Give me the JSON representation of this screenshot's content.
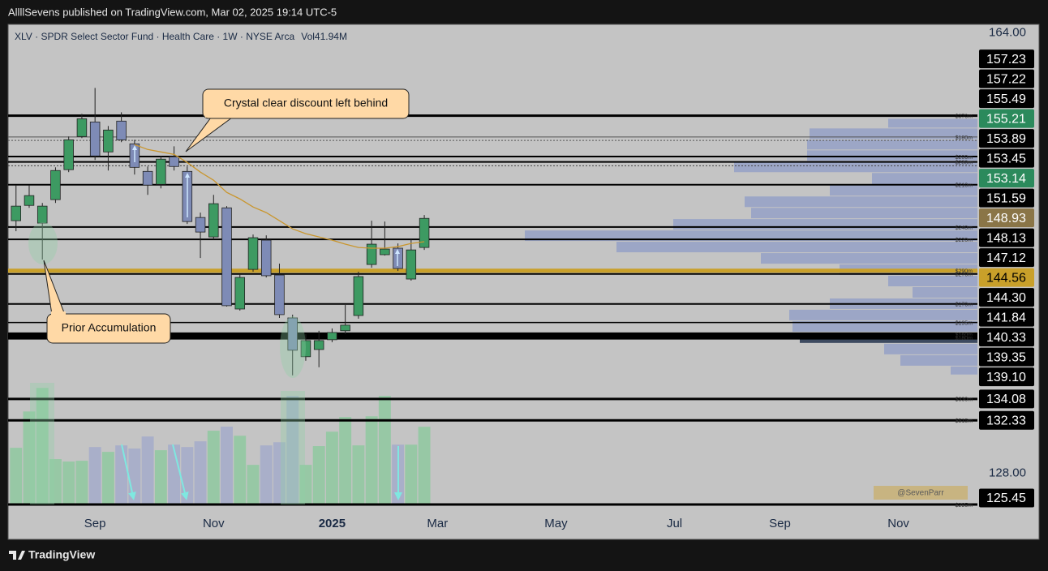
{
  "header": "AllllSevens published on TradingView.com, Mar 02, 2025 19:14 UTC-5",
  "footer": "TradingView",
  "chart_data": {
    "type": "candlestick",
    "legend": "XLV · SPDR Select Sector Fund · Health Care · 1W · NYSE Arca",
    "volume_label": "Vol41.94M",
    "annotations": [
      "Crystal clear discount left behind",
      "Prior Accumulation"
    ],
    "watermark": "@SevenParr",
    "xlim": [
      -0.6,
      73
    ],
    "xticks": [
      {
        "value": 6,
        "label": "Sep"
      },
      {
        "value": 15,
        "label": "Nov"
      },
      {
        "value": 24,
        "label": "2025"
      },
      {
        "value": 32,
        "label": "Mar"
      },
      {
        "value": 41,
        "label": "May"
      },
      {
        "value": 50,
        "label": "Jul"
      },
      {
        "value": 58,
        "label": "Sep"
      },
      {
        "value": 67,
        "label": "Nov"
      }
    ],
    "ylim": [
      122.6,
      164.7
    ],
    "yticks": [
      {
        "value": 164,
        "label": "164.00"
      },
      {
        "value": 128,
        "label": "128.00"
      }
    ],
    "up_color": "#3d9a62",
    "down_color": "#7e8bb6",
    "open": [
      148.65,
      149.9,
      148.45,
      150.37,
      152.82,
      155.53,
      156.72,
      154.27,
      156.79,
      154.93,
      152.68,
      151.62,
      153.87,
      152.68,
      148.91,
      147.32,
      149.7,
      141.43,
      144.67,
      147.06,
      144.21,
      140.7,
      137.53,
      138.12,
      138.92,
      139.65,
      140.9,
      145.07,
      145.87,
      146.4,
      143.88,
      146.46
    ],
    "high": [
      151.56,
      151.56,
      150.1,
      153.01,
      155.53,
      157.38,
      159.5,
      156.39,
      157.51,
      155.26,
      153.08,
      153.94,
      154.73,
      153.08,
      149.31,
      150.76,
      149.84,
      144.28,
      147.52,
      147.45,
      145.14,
      140.97,
      139.38,
      139.65,
      139.84,
      141.76,
      144.48,
      148.65,
      148.58,
      146.79,
      147.12,
      149.11
    ],
    "low": [
      147.79,
      149.7,
      145.47,
      150.1,
      152.62,
      155.4,
      153.61,
      152.75,
      155.07,
      152.42,
      150.76,
      151.29,
      152.75,
      148.38,
      145.6,
      147.12,
      141.63,
      141.3,
      144.48,
      144.01,
      140.7,
      136.01,
      137.2,
      136.67,
      138.72,
      139.38,
      140.64,
      144.81,
      145.8,
      144.54,
      143.75,
      146.26
    ],
    "close": [
      149.84,
      150.7,
      149.84,
      152.75,
      155.26,
      156.98,
      153.94,
      156.06,
      155.26,
      153.01,
      151.56,
      153.68,
      153.08,
      148.58,
      147.72,
      150.04,
      141.7,
      144.01,
      147.26,
      144.15,
      140.97,
      138.06,
      138.85,
      138.85,
      139.51,
      140.11,
      144.08,
      146.73,
      146.33,
      144.74,
      146.26,
      148.84
    ],
    "vlim": [
      0,
      130
    ],
    "volume": [
      30.6,
      50.2,
      62.9,
      24.5,
      23.2,
      23.6,
      31.0,
      28.4,
      31.9,
      30.2,
      36.7,
      29.3,
      32.3,
      31.0,
      34.1,
      39.8,
      42.0,
      37.1,
      21.4,
      31.9,
      33.6,
      58.6,
      21.4,
      31.5,
      39.3,
      47.2,
      31.9,
      47.6,
      58.6,
      32.3,
      32.3,
      41.94
    ],
    "ma_color": "#c9962e",
    "ma": [
      null,
      null,
      null,
      null,
      null,
      null,
      null,
      null,
      null,
      154.87,
      154.47,
      154.27,
      154.07,
      153.41,
      152.62,
      151.96,
      150.96,
      150.43,
      149.77,
      149.31,
      148.65,
      147.98,
      147.59,
      147.32,
      147.06,
      146.73,
      146.46,
      146.4,
      146.4,
      146.53,
      146.79,
      146.93
    ],
    "profile": {
      "color": "#98a3c6",
      "highlight": 19,
      "highlight_color": "#2f3d55",
      "xlim": [
        0,
        1195
      ],
      "bins": [
        156.98,
        156.19,
        155.26,
        154.4,
        153.48,
        152.55,
        151.56,
        150.63,
        149.7,
        148.78,
        147.85,
        146.93,
        146.0,
        145.07,
        144.15,
        143.22,
        142.29,
        141.37,
        140.44,
        139.51,
        138.59,
        137.66,
        136.73,
        136.01
      ],
      "values": [
        110,
        207,
        210,
        210,
        300,
        130,
        182,
        287,
        279,
        375,
        558,
        445,
        267,
        170,
        110,
        80,
        182,
        232,
        228,
        219,
        115,
        95,
        33
      ]
    },
    "levels": [
      {
        "value": 157.23,
        "label": "157.23",
        "tag": "$370m",
        "color": "#000",
        "width": 3,
        "bg": "#000",
        "fg": "#fff"
      },
      {
        "value": 157.22,
        "label": "157.22",
        "color": "#000",
        "width": 1,
        "bg": "#000",
        "fg": "#fff"
      },
      {
        "value": 155.49,
        "label": "155.49",
        "tag": "$180m",
        "color": "#555",
        "width": 1,
        "bg": "#000",
        "fg": "#fff"
      },
      {
        "value": 155.21,
        "label": "155.21",
        "color": "#555",
        "width": 1,
        "dash": "2,2",
        "bg": "#2b8a5c",
        "fg": "#fff"
      },
      {
        "value": 153.89,
        "label": "153.89",
        "tag": "$200m",
        "color": "#000",
        "width": 2,
        "bg": "#000",
        "fg": "#fff"
      },
      {
        "value": 153.45,
        "label": "153.45",
        "tag": "$230m",
        "color": "#000",
        "width": 2,
        "bg": "#000",
        "fg": "#fff"
      },
      {
        "value": 153.14,
        "label": "153.14",
        "color": "#444",
        "width": 1,
        "dash": "2,2",
        "bg": "#2b8a5c",
        "fg": "#fff"
      },
      {
        "value": 151.59,
        "label": "151.59",
        "tag": "$210m",
        "color": "#000",
        "width": 2,
        "bg": "#000",
        "fg": "#fff"
      },
      {
        "value": 148.93,
        "label": "148.93",
        "color": "none",
        "width": 0,
        "bg": "#8a7547",
        "fg": "#fff"
      },
      {
        "value": 148.13,
        "label": "148.13",
        "tag": "$240m",
        "color": "#000",
        "width": 2,
        "bg": "#000",
        "fg": "#fff"
      },
      {
        "value": 147.12,
        "label": "147.12",
        "tag": "$220m",
        "color": "#000",
        "width": 2,
        "bg": "#000",
        "fg": "#fff"
      },
      {
        "value": 144.56,
        "label": "144.56",
        "tag": "$290m",
        "color": "#c9a02a",
        "width": 5,
        "bg": "#c9a02a",
        "fg": "#000"
      },
      {
        "value": 144.3,
        "label": "144.30",
        "tag": "$270m",
        "color": "#000",
        "width": 2,
        "bg": "#000",
        "fg": "#fff"
      },
      {
        "value": 141.84,
        "label": "141.84",
        "tag": "$170m",
        "color": "#000",
        "width": 2,
        "bg": "#000",
        "fg": "#fff"
      },
      {
        "value": 140.33,
        "label": "140.33",
        "tag": "$195m",
        "color": "#000",
        "width": 1.5,
        "bg": "#000",
        "fg": "#fff"
      },
      {
        "value": 139.35,
        "label": "139.35",
        "tag": "$160m",
        "color": "#000",
        "width": 5,
        "bg": "#000",
        "fg": "#fff"
      },
      {
        "value": 139.1,
        "label": "139.10",
        "tag": "$180m",
        "color": "#000",
        "width": 5,
        "bg": "#000",
        "fg": "#fff"
      },
      {
        "value": 134.08,
        "label": "134.08",
        "tag": "$330m",
        "color": "#000",
        "width": 3,
        "bg": "#000",
        "fg": "#fff"
      },
      {
        "value": 132.33,
        "label": "132.33",
        "tag": "$515m",
        "color": "#000",
        "width": 3,
        "bg": "#000",
        "fg": "#fff"
      },
      {
        "value": 125.45,
        "label": "125.45",
        "tag": "$295m",
        "color": "#000",
        "width": 3,
        "bg": "#000",
        "fg": "#fff"
      }
    ]
  }
}
